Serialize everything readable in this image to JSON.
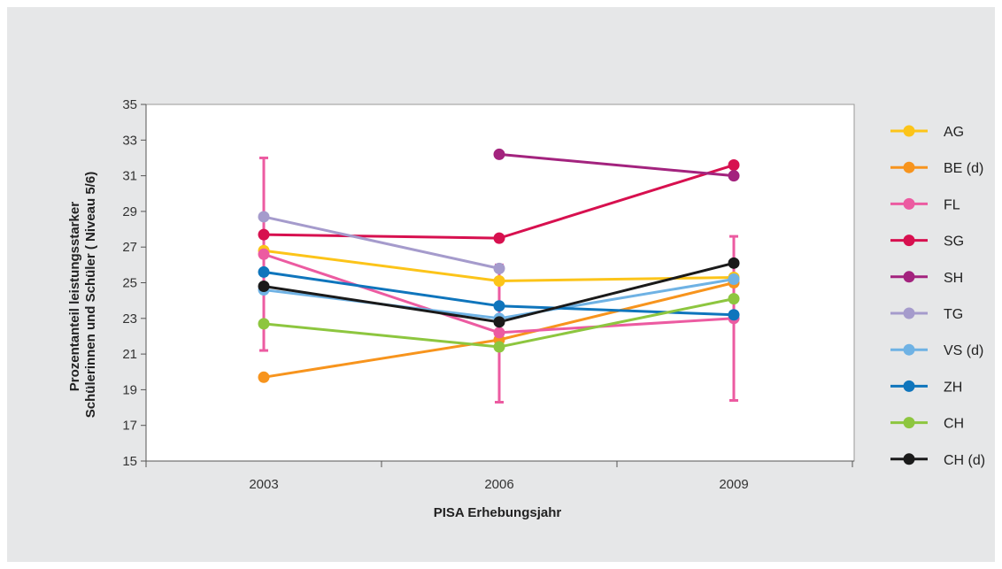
{
  "chart_data": {
    "type": "line",
    "xlabel": "PISA Erhebungsjahr",
    "ylabel_lines": [
      "Prozentanteil leistungsstarker",
      "Schülerinnen und Schüler ( Niveau 5/6)"
    ],
    "categories": [
      "2003",
      "2006",
      "2009"
    ],
    "ylim": [
      15,
      35
    ],
    "yticks": [
      15,
      17,
      19,
      21,
      23,
      25,
      27,
      29,
      31,
      33,
      35
    ],
    "grid": false,
    "legend_position": "right",
    "series": [
      {
        "name": "AG",
        "color": "#fcc419",
        "values": [
          26.8,
          25.1,
          25.3
        ]
      },
      {
        "name": "BE (d)",
        "color": "#f7941d",
        "values": [
          19.7,
          21.8,
          25.0
        ]
      },
      {
        "name": "FL",
        "color": "#ec5ba1",
        "values": [
          26.6,
          22.2,
          23.0
        ]
      },
      {
        "name": "SG",
        "color": "#d7104f",
        "values": [
          27.7,
          27.5,
          31.6
        ]
      },
      {
        "name": "SH",
        "color": "#a3237e",
        "values": [
          null,
          32.2,
          31.0
        ]
      },
      {
        "name": "TG",
        "color": "#a59bcc",
        "values": [
          28.7,
          25.8,
          null
        ]
      },
      {
        "name": "VS (d)",
        "color": "#6fb2e4",
        "values": [
          24.6,
          23.0,
          25.2
        ]
      },
      {
        "name": "ZH",
        "color": "#0f75bc",
        "values": [
          25.6,
          23.7,
          23.2
        ]
      },
      {
        "name": "CH",
        "color": "#8dc63f",
        "values": [
          22.7,
          21.4,
          24.1
        ]
      },
      {
        "name": "CH (d)",
        "color": "#1a1a1a",
        "values": [
          24.8,
          22.8,
          26.1
        ]
      }
    ],
    "error_bars": {
      "series": "FL",
      "color": "#ec5ba1",
      "ranges": [
        [
          21.2,
          32.0
        ],
        [
          18.3,
          26.0
        ],
        [
          18.4,
          27.6
        ]
      ]
    }
  }
}
